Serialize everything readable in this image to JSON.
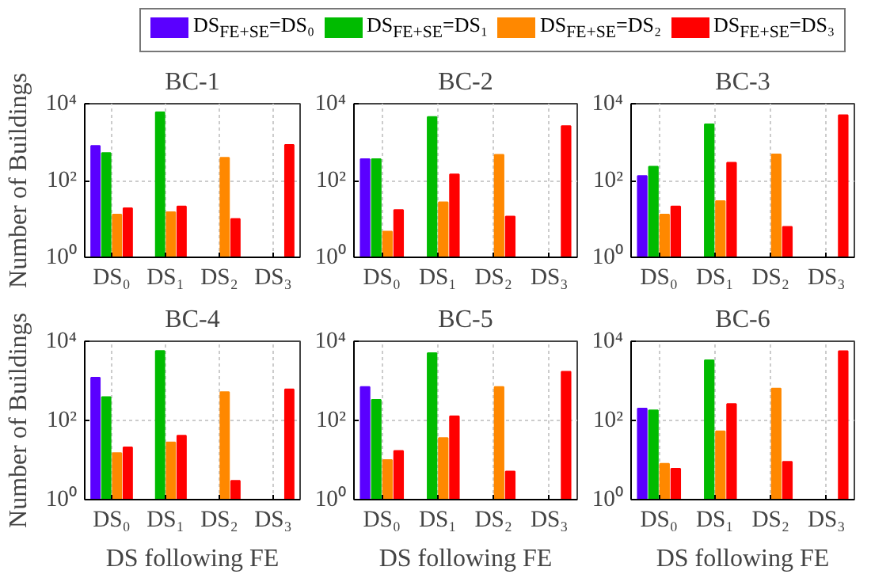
{
  "chart_data": [
    {
      "type": "bar",
      "title": "BC-1",
      "ylabel": "Number of Buildings",
      "categories": [
        "DS₀",
        "DS₁",
        "DS₂",
        "DS₃"
      ],
      "log": true,
      "ylim": [
        1,
        10000
      ],
      "yticks": [
        {
          "value": 1,
          "label": "10⁰"
        },
        {
          "value": 100,
          "label": "10²"
        },
        {
          "value": 10000,
          "label": "10⁴"
        }
      ],
      "grid": true,
      "legend": "top",
      "series": [
        {
          "name": "DS$_{FE+SE}$=DS₀",
          "color": "#5a00ff",
          "values": [
            800,
            null,
            null,
            null
          ]
        },
        {
          "name": "DS$_{FE+SE}$=DS₁",
          "color": "#00bb00",
          "values": [
            520,
            6000,
            null,
            null
          ]
        },
        {
          "name": "DS$_{FE+SE}$=DS₂",
          "color": "#ff8800",
          "values": [
            13,
            15,
            390,
            null
          ]
        },
        {
          "name": "DS$_{FE+SE}$=DS₃",
          "color": "#ff0000",
          "values": [
            19,
            21,
            10,
            850
          ]
        }
      ]
    },
    {
      "type": "bar",
      "title": "BC-2",
      "categories": [
        "DS₀",
        "DS₁",
        "DS₂",
        "DS₃"
      ],
      "log": true,
      "ylim": [
        1,
        10000
      ],
      "yticks": [
        {
          "value": 1,
          "label": "10⁰"
        },
        {
          "value": 100,
          "label": "10²"
        },
        {
          "value": 10000,
          "label": "10⁴"
        }
      ],
      "grid": true,
      "series": [
        {
          "color": "#5a00ff",
          "values": [
            360,
            null,
            null,
            null
          ]
        },
        {
          "color": "#00bb00",
          "values": [
            360,
            4500,
            null,
            null
          ]
        },
        {
          "color": "#ff8800",
          "values": [
            4.7,
            27,
            470,
            null
          ]
        },
        {
          "color": "#ff0000",
          "values": [
            17,
            145,
            11.5,
            2600
          ]
        }
      ]
    },
    {
      "type": "bar",
      "title": "BC-3",
      "categories": [
        "DS₀",
        "DS₁",
        "DS₂",
        "DS₃"
      ],
      "log": true,
      "ylim": [
        1,
        10000
      ],
      "yticks": [
        {
          "value": 1,
          "label": "10⁰"
        },
        {
          "value": 100,
          "label": "10²"
        },
        {
          "value": 10000,
          "label": "10⁴"
        }
      ],
      "grid": true,
      "series": [
        {
          "color": "#5a00ff",
          "values": [
            132,
            null,
            null,
            null
          ]
        },
        {
          "color": "#00bb00",
          "values": [
            230,
            2900,
            null,
            null
          ]
        },
        {
          "color": "#ff8800",
          "values": [
            13,
            29,
            480,
            null
          ]
        },
        {
          "color": "#ff0000",
          "values": [
            21,
            290,
            6.2,
            5000
          ]
        }
      ]
    },
    {
      "type": "bar",
      "title": "BC-4",
      "xlabel": "DS following FE",
      "ylabel": "Number of Buildings",
      "categories": [
        "DS₀",
        "DS₁",
        "DS₂",
        "DS₃"
      ],
      "log": true,
      "ylim": [
        1,
        10000
      ],
      "yticks": [
        {
          "value": 1,
          "label": "10⁰"
        },
        {
          "value": 100,
          "label": "10²"
        },
        {
          "value": 10000,
          "label": "10⁴"
        }
      ],
      "grid": true,
      "series": [
        {
          "color": "#5a00ff",
          "values": [
            1200,
            null,
            null,
            null
          ]
        },
        {
          "color": "#00bb00",
          "values": [
            390,
            5700,
            null,
            null
          ]
        },
        {
          "color": "#ff8800",
          "values": [
            15,
            28,
            520,
            null
          ]
        },
        {
          "color": "#ff0000",
          "values": [
            21,
            41,
            3,
            610
          ]
        }
      ]
    },
    {
      "type": "bar",
      "title": "BC-5",
      "xlabel": "DS following FE",
      "categories": [
        "DS₀",
        "DS₁",
        "DS₂",
        "DS₃"
      ],
      "log": true,
      "ylim": [
        1,
        10000
      ],
      "yticks": [
        {
          "value": 1,
          "label": "10⁰"
        },
        {
          "value": 100,
          "label": "10²"
        },
        {
          "value": 10000,
          "label": "10⁴"
        }
      ],
      "grid": true,
      "series": [
        {
          "color": "#5a00ff",
          "values": [
            700,
            null,
            null,
            null
          ]
        },
        {
          "color": "#00bb00",
          "values": [
            330,
            5000,
            null,
            null
          ]
        },
        {
          "color": "#ff8800",
          "values": [
            10,
            36,
            700,
            null
          ]
        },
        {
          "color": "#ff0000",
          "values": [
            17,
            128,
            5.1,
            1700
          ]
        }
      ]
    },
    {
      "type": "bar",
      "title": "BC-6",
      "xlabel": "DS following FE",
      "categories": [
        "DS₀",
        "DS₁",
        "DS₂",
        "DS₃"
      ],
      "log": true,
      "ylim": [
        1,
        10000
      ],
      "yticks": [
        {
          "value": 1,
          "label": "10⁰"
        },
        {
          "value": 100,
          "label": "10²"
        },
        {
          "value": 10000,
          "label": "10⁴"
        }
      ],
      "grid": true,
      "series": [
        {
          "color": "#5a00ff",
          "values": [
            200,
            null,
            null,
            null
          ]
        },
        {
          "color": "#00bb00",
          "values": [
            180,
            3300,
            null,
            null
          ]
        },
        {
          "color": "#ff8800",
          "values": [
            8,
            53,
            640,
            null
          ]
        },
        {
          "color": "#ff0000",
          "values": [
            6,
            260,
            9,
            5600
          ]
        }
      ]
    }
  ]
}
